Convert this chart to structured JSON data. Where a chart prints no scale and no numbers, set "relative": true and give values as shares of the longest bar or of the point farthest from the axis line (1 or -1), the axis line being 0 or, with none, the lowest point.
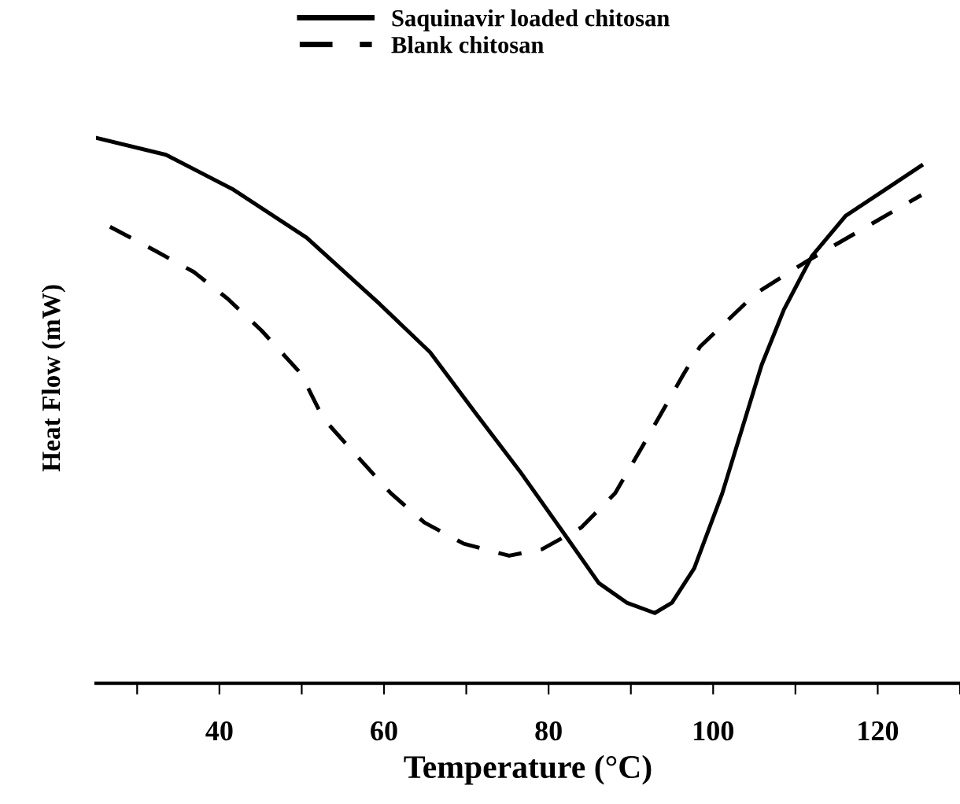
{
  "chart_data": {
    "type": "line",
    "xlabel": "Temperature (°C)",
    "ylabel": "Heat Flow (mW)",
    "relative": true,
    "xlim": [
      25,
      130
    ],
    "xticks": [
      {
        "value": 30,
        "label": null
      },
      40,
      {
        "value": 50,
        "label": null
      },
      60,
      {
        "value": 70,
        "label": null
      },
      80,
      {
        "value": 90,
        "label": null
      },
      100,
      {
        "value": 110,
        "label": null
      },
      120,
      {
        "value": 130,
        "label": null
      }
    ],
    "legend": "top",
    "grid": false,
    "marker": "none",
    "series": [
      {
        "name": "Saquinavir loaded chitosan",
        "color": "#000000",
        "line_style": "solid",
        "x": [
          25,
          33.5,
          41.7,
          50.6,
          59.5,
          65.6,
          71.1,
          76.5,
          82,
          86.1,
          89.5,
          92.9,
          95,
          97.7,
          101.1,
          105.9,
          108.6,
          112,
          116.1,
          120.9,
          125.3
        ],
        "values": [
          1.0,
          0.969,
          0.905,
          0.817,
          0.695,
          0.607,
          0.496,
          0.389,
          0.272,
          0.184,
          0.148,
          0.129,
          0.148,
          0.211,
          0.348,
          0.584,
          0.685,
          0.783,
          0.857,
          0.905,
          0.949
        ]
      },
      {
        "name": "Blank chitosan",
        "color": "#000000",
        "line_style": "dashed",
        "x": [
          26.7,
          32.2,
          36.9,
          41,
          45.1,
          49.9,
          52.6,
          56.7,
          60.8,
          64.9,
          69.7,
          75.2,
          79.2,
          84,
          88.1,
          91.5,
          96.3,
          98.4,
          105.2,
          111.3,
          117.5,
          125.3
        ],
        "values": [
          0.837,
          0.793,
          0.754,
          0.705,
          0.647,
          0.568,
          0.486,
          0.417,
          0.349,
          0.295,
          0.256,
          0.234,
          0.246,
          0.286,
          0.349,
          0.437,
          0.564,
          0.617,
          0.715,
          0.773,
          0.827,
          0.895
        ]
      }
    ]
  }
}
